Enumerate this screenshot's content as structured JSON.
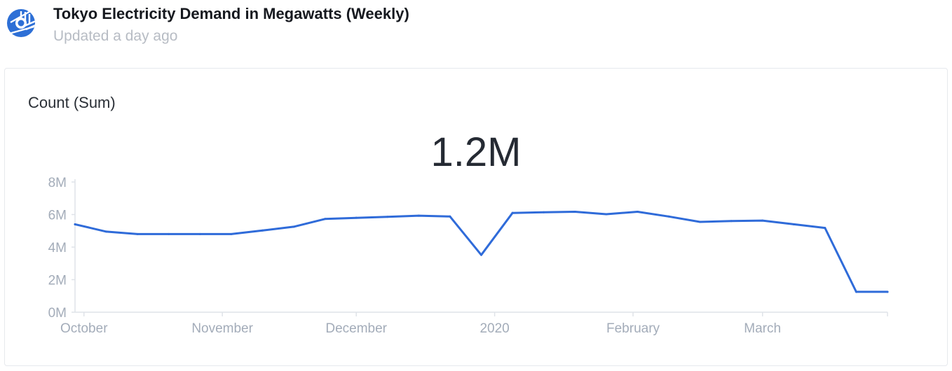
{
  "header": {
    "title": "Tokyo Electricity Demand in Megawatts (Weekly)",
    "subtitle": "Updated a day ago",
    "logo_icon": "ring-with-stripes-logo-icon"
  },
  "card": {
    "metric_label": "Count (Sum)",
    "big_value": "1.2M"
  },
  "colors": {
    "line": "#2f6bd9",
    "axis": "#dfe3e8",
    "tick_text": "#a3acb9",
    "logo": "#2d6fd6"
  },
  "chart_data": {
    "type": "line",
    "title": "",
    "xlabel": "",
    "ylabel": "",
    "ylim": [
      0,
      8000000
    ],
    "y_ticks": [
      {
        "value": 0,
        "label": "0M"
      },
      {
        "value": 2000000,
        "label": "2M"
      },
      {
        "value": 4000000,
        "label": "4M"
      },
      {
        "value": 6000000,
        "label": "6M"
      },
      {
        "value": 8000000,
        "label": "8M"
      }
    ],
    "xlim": [
      "2019-09-29",
      "2020-03-29"
    ],
    "x_ticks": [
      {
        "date": "2019-10-01",
        "label": "October"
      },
      {
        "date": "2019-11-01",
        "label": "November"
      },
      {
        "date": "2019-12-01",
        "label": "December"
      },
      {
        "date": "2020-01-01",
        "label": "2020"
      },
      {
        "date": "2020-02-01",
        "label": "February"
      },
      {
        "date": "2020-03-01",
        "label": "March"
      }
    ],
    "grid": false,
    "legend": "none",
    "series": [
      {
        "x": [
          "2019-09-29",
          "2019-10-06",
          "2019-10-13",
          "2019-10-20",
          "2019-10-27",
          "2019-11-03",
          "2019-11-10",
          "2019-11-17",
          "2019-11-24",
          "2019-12-01",
          "2019-12-08",
          "2019-12-15",
          "2019-12-22",
          "2019-12-29",
          "2020-01-05",
          "2020-01-12",
          "2020-01-19",
          "2020-01-26",
          "2020-02-02",
          "2020-02-09",
          "2020-02-16",
          "2020-02-23",
          "2020-03-01",
          "2020-03-08",
          "2020-03-15",
          "2020-03-22",
          "2020-03-29"
        ],
        "values": [
          5400000,
          4950000,
          4800000,
          4800000,
          4800000,
          4800000,
          5020000,
          5250000,
          5730000,
          5800000,
          5860000,
          5930000,
          5880000,
          3520000,
          6100000,
          6140000,
          6170000,
          6020000,
          6170000,
          5880000,
          5550000,
          5600000,
          5630000,
          5400000,
          5180000,
          1250000,
          1250000
        ]
      }
    ]
  }
}
